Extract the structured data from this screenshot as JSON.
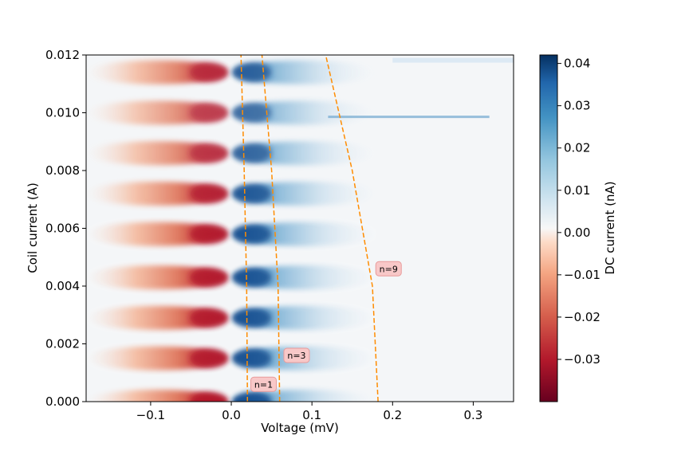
{
  "chart_data": {
    "type": "heatmap",
    "title": "",
    "xlabel": "Voltage (mV)",
    "ylabel": "Coil current (A)",
    "xlim": [
      -0.18,
      0.35
    ],
    "ylim": [
      0.0,
      0.012
    ],
    "x_ticks": [
      -0.1,
      0.0,
      0.1,
      0.2,
      0.3
    ],
    "x_tick_labels": [
      "−0.1",
      "0.0",
      "0.1",
      "0.2",
      "0.3"
    ],
    "y_ticks": [
      0.0,
      0.002,
      0.004,
      0.006,
      0.008,
      0.01,
      0.012
    ],
    "y_tick_labels": [
      "0.000",
      "0.002",
      "0.004",
      "0.006",
      "0.008",
      "0.010",
      "0.012"
    ],
    "colormap": "RdBu",
    "colorbar": {
      "label": "DC current (nA)",
      "range": [
        -0.04,
        0.042
      ],
      "ticks": [
        -0.03,
        -0.02,
        -0.01,
        0.0,
        0.01,
        0.02,
        0.03,
        0.04
      ],
      "tick_labels": [
        "−0.03",
        "−0.02",
        "−0.01",
        "0.00",
        "0.01",
        "0.02",
        "0.03",
        "0.04"
      ]
    },
    "lobe_rows_coil_current": [
      0.0,
      0.0015,
      0.0029,
      0.0043,
      0.0058,
      0.0072,
      0.0086,
      0.01,
      0.0114
    ],
    "lobe_amplitude": [
      1.0,
      0.95,
      0.95,
      0.95,
      0.95,
      0.88,
      0.7,
      0.6,
      0.8
    ],
    "curves": [
      {
        "name": "n=1",
        "color": "#ff8c00",
        "y": [
          0.0,
          0.004,
          0.008,
          0.012
        ],
        "x": [
          0.02,
          0.019,
          0.016,
          0.012
        ]
      },
      {
        "name": "n=3",
        "color": "#ff8c00",
        "y": [
          0.0,
          0.004,
          0.008,
          0.012
        ],
        "x": [
          0.06,
          0.058,
          0.05,
          0.038
        ]
      },
      {
        "name": "n=9",
        "color": "#ff8c00",
        "y": [
          0.0,
          0.004,
          0.008,
          0.012
        ],
        "x": [
          0.182,
          0.175,
          0.15,
          0.117
        ]
      }
    ],
    "annotations": [
      {
        "text": "n=1",
        "x": 0.04,
        "y": 0.0006
      },
      {
        "text": "n=3",
        "x": 0.081,
        "y": 0.0016
      },
      {
        "text": "n=9",
        "x": 0.195,
        "y": 0.0046
      }
    ]
  }
}
